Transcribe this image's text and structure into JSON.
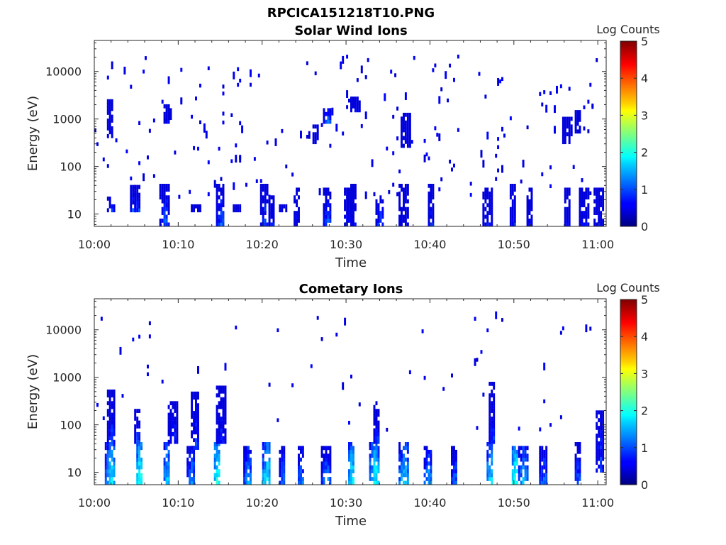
{
  "figure_title": "RPCICA151218T10.PNG",
  "chart_data": [
    {
      "type": "heatmap",
      "title": "Solar Wind Ions",
      "xlabel": "Time",
      "ylabel": "Energy (eV)",
      "x_ticks": [
        "10:00",
        "10:10",
        "10:20",
        "10:30",
        "10:40",
        "10:50",
        "11:00"
      ],
      "x_range_minutes": [
        0,
        61
      ],
      "y_ticks": [
        "10",
        "100",
        "1000",
        "10000"
      ],
      "y_scale": "log",
      "y_range": [
        5.5,
        45000
      ],
      "colorbar": {
        "label": "Log Counts",
        "ticks": [
          "0",
          "1",
          "2",
          "3",
          "4",
          "5"
        ],
        "range": [
          0,
          5
        ],
        "colormap": "jet"
      },
      "events": [
        [
          2.0,
          11,
          22,
          0.8
        ],
        [
          4.8,
          11,
          40,
          1.1
        ],
        [
          5.3,
          11,
          40,
          1.0
        ],
        [
          8.5,
          5.5,
          40,
          1.2
        ],
        [
          12.3,
          11,
          14,
          0.7
        ],
        [
          15.2,
          5.5,
          40,
          1.2
        ],
        [
          17.0,
          11,
          14,
          0.6
        ],
        [
          20.4,
          5.5,
          40,
          1.1
        ],
        [
          21.3,
          5.5,
          22,
          0.8
        ],
        [
          22.6,
          11,
          14,
          0.6
        ],
        [
          24.3,
          5.5,
          30,
          0.8
        ],
        [
          27.8,
          5.5,
          30,
          1.2
        ],
        [
          30.3,
          5.5,
          30,
          0.9
        ],
        [
          31.0,
          5.5,
          40,
          0.9
        ],
        [
          34.0,
          5.5,
          22,
          1.2
        ],
        [
          37.0,
          5.5,
          40,
          0.5
        ],
        [
          40.2,
          5.5,
          40,
          0.9
        ],
        [
          47.0,
          5.5,
          30,
          0.8
        ],
        [
          50.0,
          5.5,
          40,
          1.0
        ],
        [
          52.0,
          5.5,
          30,
          0.8
        ],
        [
          56.5,
          5.5,
          30,
          0.7
        ],
        [
          58.4,
          5.5,
          30,
          0.9
        ],
        [
          60.3,
          5.5,
          30,
          0.8
        ],
        [
          2.1,
          400,
          2500,
          0.6
        ],
        [
          8.9,
          800,
          2000,
          0.7
        ],
        [
          27.9,
          800,
          1600,
          1.2
        ],
        [
          31.2,
          1400,
          2500,
          0.8
        ],
        [
          37.2,
          250,
          1200,
          0.6
        ],
        [
          57.8,
          500,
          1500,
          0.6
        ],
        [
          56.5,
          300,
          1000,
          0.5
        ],
        [
          26.5,
          300,
          700,
          0.4
        ]
      ]
    },
    {
      "type": "heatmap",
      "title": "Cometary Ions",
      "xlabel": "Time",
      "ylabel": "Energy (eV)",
      "x_ticks": [
        "10:00",
        "10:10",
        "10:20",
        "10:30",
        "10:40",
        "10:50",
        "11:00"
      ],
      "x_range_minutes": [
        0,
        61
      ],
      "y_ticks": [
        "10",
        "100",
        "1000",
        "10000"
      ],
      "y_scale": "log",
      "y_range": [
        5.5,
        45000
      ],
      "colorbar": {
        "label": "Log Counts",
        "ticks": [
          "0",
          "1",
          "2",
          "3",
          "4",
          "5"
        ],
        "range": [
          0,
          5
        ],
        "colormap": "jet"
      },
      "events": [
        [
          2.0,
          5.5,
          40,
          2.0
        ],
        [
          2.2,
          40,
          500,
          1.0
        ],
        [
          5.5,
          5.5,
          40,
          2.2
        ],
        [
          5.2,
          40,
          200,
          1.0
        ],
        [
          8.8,
          5.5,
          40,
          1.8
        ],
        [
          9.5,
          40,
          300,
          1.0
        ],
        [
          11.6,
          5.5,
          30,
          1.5
        ],
        [
          12.0,
          30,
          500,
          1.0
        ],
        [
          14.8,
          5.5,
          40,
          2.2
        ],
        [
          15.2,
          40,
          600,
          1.0
        ],
        [
          18.3,
          5.5,
          30,
          1.6
        ],
        [
          20.7,
          5.5,
          40,
          2.0
        ],
        [
          22.5,
          5.5,
          30,
          1.3
        ],
        [
          24.7,
          5.5,
          30,
          1.4
        ],
        [
          27.7,
          5.5,
          30,
          1.5
        ],
        [
          30.7,
          5.5,
          40,
          2.0
        ],
        [
          33.6,
          5.5,
          40,
          2.1
        ],
        [
          33.8,
          40,
          300,
          1.0
        ],
        [
          36.9,
          5.5,
          40,
          1.9
        ],
        [
          39.9,
          5.5,
          30,
          1.6
        ],
        [
          43.0,
          5.5,
          30,
          1.3
        ],
        [
          47.3,
          5.5,
          40,
          1.9
        ],
        [
          47.5,
          40,
          800,
          1.0
        ],
        [
          50.3,
          5.5,
          40,
          2.2
        ],
        [
          51.3,
          5.5,
          30,
          1.8
        ],
        [
          53.5,
          5.5,
          30,
          1.3
        ],
        [
          57.8,
          5.5,
          40,
          1.3
        ],
        [
          60.4,
          10,
          200,
          1.1
        ]
      ]
    }
  ]
}
